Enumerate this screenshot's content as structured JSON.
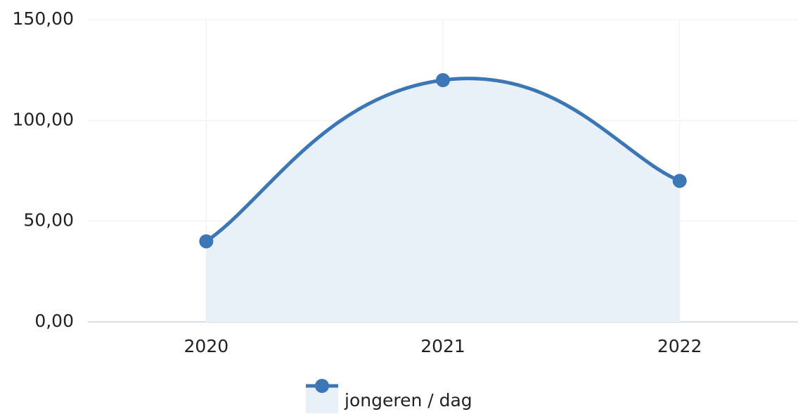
{
  "chart_data": {
    "type": "area-spline",
    "categories": [
      "2020",
      "2021",
      "2022"
    ],
    "series": [
      {
        "name": "jongeren / dag",
        "color": "#3b76b6",
        "fill": "#e8f0f8",
        "values": [
          40,
          120,
          70
        ]
      }
    ],
    "ylim": [
      0,
      150
    ],
    "yticks": [
      {
        "value": 0,
        "label": "0,00"
      },
      {
        "value": 50,
        "label": "50,00"
      },
      {
        "value": 100,
        "label": "100,00"
      },
      {
        "value": 150,
        "label": "150,00"
      }
    ],
    "grid": true,
    "legend": "bottom"
  }
}
